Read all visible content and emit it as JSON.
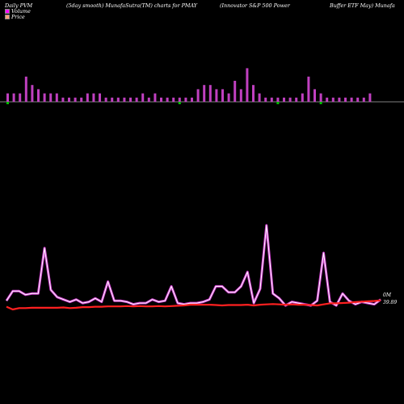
{
  "header": {
    "col1": "Daily PVM",
    "col2": "(5day smooth) MunafaSutra(TM) charts for PMAY",
    "col3": "(Innovator S&P 500  Power",
    "col4": "Buffer ETF May) Munafa"
  },
  "legend": [
    {
      "label": "Volume",
      "color": "#ff00ff"
    },
    {
      "label": "Price",
      "color": "#ffa07a"
    }
  ],
  "colors": {
    "volume_bar": "#c040c0",
    "up_tick": "#00c000",
    "line_white": "#ffffff",
    "line_violet": "#d040d0",
    "line_red": "#ff2020",
    "baseline": "#aaaaaa"
  },
  "labels": {
    "volume_right": "0M",
    "price_right": "39.89"
  },
  "chart_data": {
    "type": "bar+line",
    "volume_bars": [
      2,
      2,
      2,
      6,
      4,
      3,
      2,
      2,
      2,
      1,
      1,
      1,
      1,
      2,
      2,
      2,
      1,
      1,
      1,
      1,
      1,
      1,
      2,
      1,
      2,
      1,
      1,
      1,
      1,
      1,
      1,
      3,
      4,
      4,
      3,
      3,
      2,
      5,
      3,
      8,
      4,
      2,
      1,
      1,
      1,
      1,
      1,
      1,
      2,
      6,
      3,
      2,
      1,
      1,
      1,
      1,
      1,
      1,
      1,
      2
    ],
    "negative_ticks": [
      1,
      0,
      0,
      0,
      0,
      0,
      0,
      0,
      0,
      0,
      0,
      0,
      0,
      0,
      0,
      0,
      0,
      0,
      0,
      0,
      0,
      0,
      0,
      0,
      0,
      0,
      0,
      0,
      1,
      0,
      0,
      0,
      0,
      0,
      0,
      0,
      0,
      0,
      0,
      0,
      0,
      0,
      0,
      0,
      1,
      0,
      0,
      0,
      0,
      0,
      0,
      1,
      0,
      0,
      0,
      0,
      0,
      0,
      0,
      0
    ],
    "volume_line": [
      8,
      16,
      16,
      13,
      14,
      14,
      52,
      17,
      11,
      9,
      7,
      9,
      6,
      7,
      10,
      7,
      24,
      8,
      8,
      7,
      5,
      6,
      6,
      9,
      7,
      8,
      20,
      6,
      5,
      6,
      6,
      7,
      9,
      20,
      20,
      15,
      15,
      20,
      32,
      6,
      18,
      71,
      14,
      10,
      4,
      7,
      6,
      5,
      4,
      8,
      48,
      7,
      4,
      14,
      8,
      5,
      7,
      6,
      5,
      9
    ],
    "price_line": [
      39.7,
      39.62,
      39.66,
      39.66,
      39.67,
      39.67,
      39.67,
      39.67,
      39.67,
      39.68,
      39.66,
      39.67,
      39.69,
      39.69,
      39.7,
      39.7,
      39.71,
      39.71,
      39.71,
      39.72,
      39.71,
      39.72,
      39.71,
      39.71,
      39.72,
      39.71,
      39.72,
      39.73,
      39.74,
      39.76,
      39.76,
      39.76,
      39.76,
      39.75,
      39.74,
      39.75,
      39.75,
      39.75,
      39.76,
      39.74,
      39.76,
      39.77,
      39.78,
      39.77,
      39.76,
      39.77,
      39.76,
      39.76,
      39.75,
      39.74,
      39.77,
      39.8,
      39.8,
      39.81,
      39.82,
      39.84,
      39.85,
      39.86,
      39.87,
      39.89
    ]
  }
}
